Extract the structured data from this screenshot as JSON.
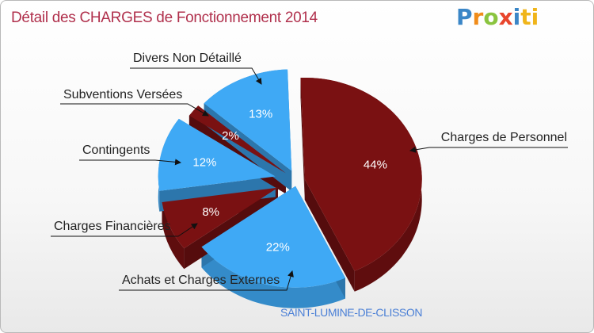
{
  "header": {
    "title": "Détail des CHARGES de Fonctionnement 2014",
    "logo_letters": [
      "P",
      "r",
      "o",
      "x",
      "i",
      "ti"
    ]
  },
  "footer": {
    "location": "SAINT-LUMINE-DE-CLISSON"
  },
  "colors": {
    "dark_red": "#7a1112",
    "blue": "#3fa9f5",
    "title": "#b0304c"
  },
  "chart_data": {
    "type": "pie",
    "title": "Détail des CHARGES de Fonctionnement 2014",
    "slices": [
      {
        "label": "Charges de Personnel",
        "value": 44,
        "pct_label": "44%",
        "color": "#7a1112"
      },
      {
        "label": "Achats et Charges Externes",
        "value": 22,
        "pct_label": "22%",
        "color": "#3fa9f5"
      },
      {
        "label": "Charges Financières",
        "value": 8,
        "pct_label": "8%",
        "color": "#7a1112"
      },
      {
        "label": "Contingents",
        "value": 12,
        "pct_label": "12%",
        "color": "#3fa9f5"
      },
      {
        "label": "Subventions Versées",
        "value": 2,
        "pct_label": "2%",
        "color": "#7a1112"
      },
      {
        "label": "Divers Non Détaillé",
        "value": 13,
        "pct_label": "13%",
        "color": "#3fa9f5"
      }
    ]
  }
}
